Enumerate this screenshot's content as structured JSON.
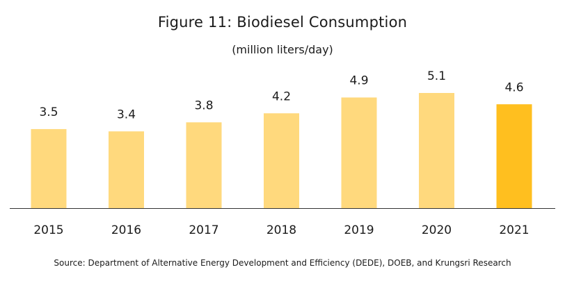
{
  "header": {
    "title": "Figure 11: Biodiesel Consumption",
    "subtitle": "(million liters/day)"
  },
  "footer": {
    "source": "Source: Department of Alternative Energy Development and Efficiency (DEDE), DOEB, and Krungsri Research"
  },
  "colors": {
    "bar": "#FFD97D",
    "bar_highlight": "#FFBF1F",
    "axis": "#333333",
    "text": "#1a1a1a"
  },
  "chart_data": {
    "type": "bar",
    "title": "Figure 11: Biodiesel Consumption",
    "subtitle": "(million liters/day)",
    "categories": [
      "2015",
      "2016",
      "2017",
      "2018",
      "2019",
      "2020",
      "2021"
    ],
    "values": [
      3.5,
      3.4,
      3.8,
      4.2,
      4.9,
      5.1,
      4.6
    ],
    "value_labels": [
      "3.5",
      "3.4",
      "3.8",
      "4.2",
      "4.9",
      "5.1",
      "4.6"
    ],
    "highlight_index": 6,
    "xlabel": "",
    "ylabel": "",
    "ylim": [
      0,
      5.1
    ],
    "grid": false,
    "legend": "none"
  }
}
